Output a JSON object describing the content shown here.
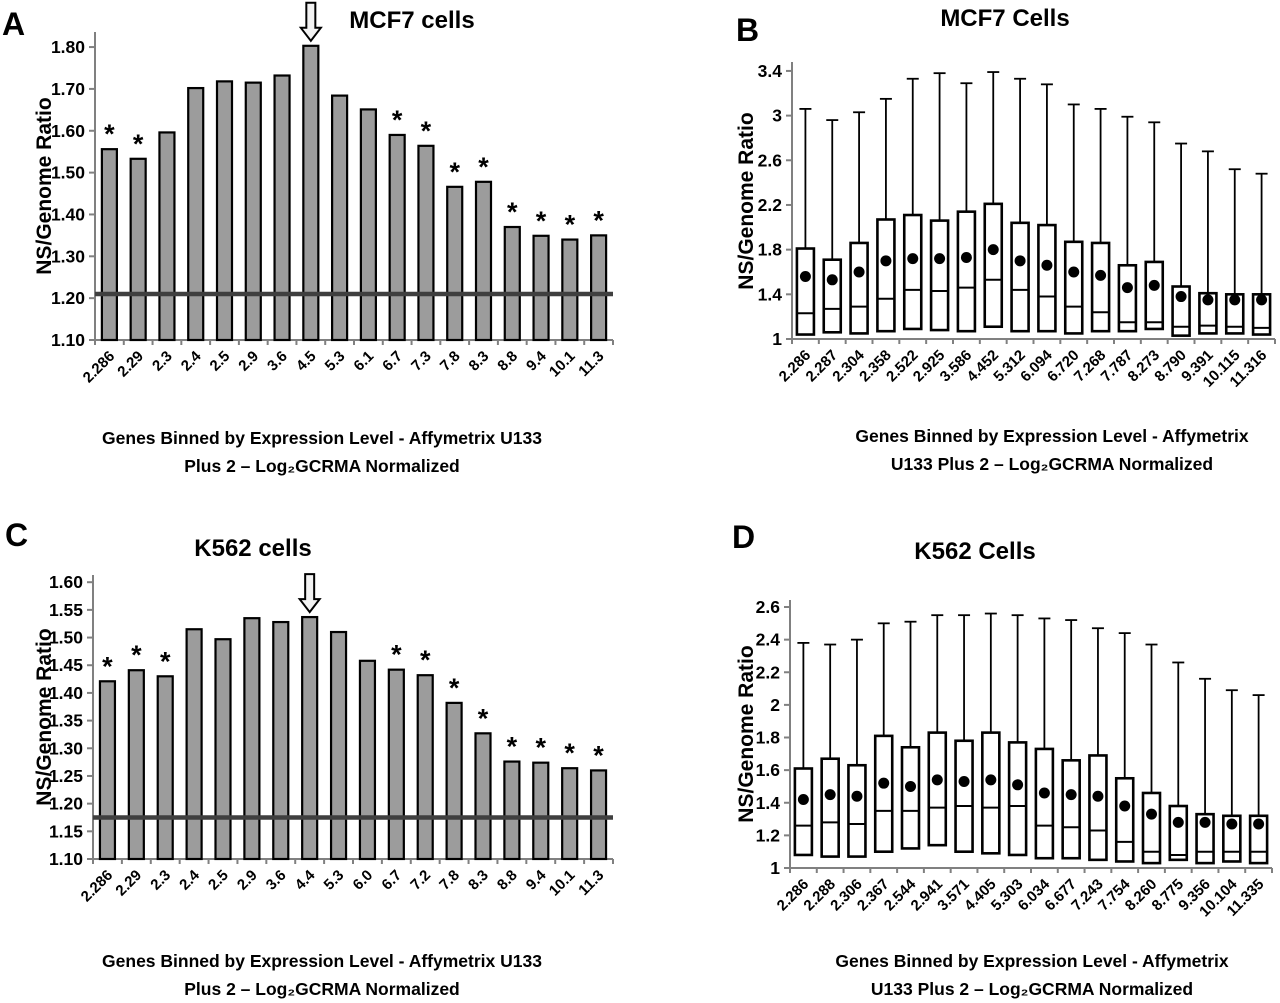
{
  "figure": {
    "significance_marker": "*",
    "colors": {
      "background": "#ffffff",
      "bar_fill": "#9c9c9c",
      "bar_stroke": "#000000",
      "reference_line": "#3f3f3f",
      "axis": "#808080",
      "box_fill": "#ffffff",
      "box_stroke": "#000000",
      "mean_dot": "#000000"
    }
  },
  "chart_data": [
    {
      "panel_label": "A",
      "type": "bar",
      "title": "MCF7 cells",
      "ylabel": "NS/Genome Ratio",
      "xlabel_line1": "Genes Binned by Expression Level - Affymetrix U133",
      "xlabel_line2": "Plus 2 – Log₂GCRMA Normalized",
      "categories": [
        "2.286",
        "2.29",
        "2.3",
        "2.4",
        "2.5",
        "2.9",
        "3.6",
        "4.5",
        "5.3",
        "6.1",
        "6.7",
        "7.3",
        "7.8",
        "8.3",
        "8.8",
        "9.4",
        "10.1",
        "11.3"
      ],
      "values": [
        1.556,
        1.533,
        1.596,
        1.702,
        1.718,
        1.715,
        1.732,
        1.803,
        1.684,
        1.651,
        1.59,
        1.564,
        1.466,
        1.478,
        1.37,
        1.349,
        1.34,
        1.35
      ],
      "significant_indices": [
        0,
        1,
        10,
        11,
        12,
        13,
        14,
        15,
        16,
        17
      ],
      "arrow_index": 7,
      "reference_line": 1.21,
      "ylim": [
        1.1,
        1.836
      ],
      "ytick_values": [
        1.1,
        1.2,
        1.3,
        1.4,
        1.5,
        1.6,
        1.7,
        1.8
      ],
      "ytick_labels": [
        "1.10",
        "1.20",
        "1.30",
        "1.40",
        "1.50",
        "1.60",
        "1.70",
        "1.80"
      ],
      "grid": false,
      "legend": "none"
    },
    {
      "panel_label": "B",
      "type": "box",
      "title": "MCF7 Cells",
      "ylabel": "NS/Genome Ratio",
      "xlabel_line1": "Genes Binned by Expression Level - Affymetrix",
      "xlabel_line2": "U133 Plus 2 – Log₂GCRMA Normalized",
      "categories": [
        "2.286",
        "2.287",
        "2.304",
        "2.358",
        "2.522",
        "2.925",
        "3.586",
        "4.452",
        "5.312",
        "6.094",
        "6.720",
        "7.268",
        "7.787",
        "8.273",
        "8.790",
        "9.391",
        "10.115",
        "11.316"
      ],
      "boxes": {
        "q1": [
          1.04,
          1.06,
          1.05,
          1.07,
          1.09,
          1.08,
          1.07,
          1.11,
          1.07,
          1.07,
          1.05,
          1.07,
          1.07,
          1.09,
          1.03,
          1.05,
          1.05,
          1.04
        ],
        "median": [
          1.23,
          1.27,
          1.29,
          1.36,
          1.44,
          1.43,
          1.46,
          1.53,
          1.44,
          1.38,
          1.29,
          1.24,
          1.15,
          1.15,
          1.11,
          1.12,
          1.11,
          1.1
        ],
        "q3": [
          1.81,
          1.71,
          1.86,
          2.07,
          2.11,
          2.06,
          2.14,
          2.21,
          2.04,
          2.02,
          1.87,
          1.86,
          1.66,
          1.69,
          1.47,
          1.41,
          1.4,
          1.4
        ],
        "whisker_high": [
          3.06,
          2.96,
          3.03,
          3.15,
          3.33,
          3.38,
          3.29,
          3.39,
          3.33,
          3.28,
          3.1,
          3.06,
          2.99,
          2.94,
          2.75,
          2.68,
          2.52,
          2.48
        ],
        "mean": [
          1.56,
          1.53,
          1.6,
          1.7,
          1.72,
          1.72,
          1.73,
          1.8,
          1.7,
          1.66,
          1.6,
          1.57,
          1.46,
          1.48,
          1.38,
          1.35,
          1.35,
          1.35
        ]
      },
      "ylim": [
        1.0,
        3.48
      ],
      "ytick_values": [
        1,
        1.4,
        1.8,
        2.2,
        2.6,
        3,
        3.4
      ],
      "ytick_labels": [
        "1",
        "1.4",
        "1.8",
        "2.2",
        "2.6",
        "3",
        "3.4"
      ],
      "grid": false,
      "legend": "none"
    },
    {
      "panel_label": "C",
      "type": "bar",
      "title": "K562 cells",
      "ylabel": "NS/Genome Ratio",
      "xlabel_line1": "Genes Binned by Expression Level - Affymetrix U133",
      "xlabel_line2": "Plus 2 – Log₂GCRMA Normalized",
      "categories": [
        "2.286",
        "2.29",
        "2.3",
        "2.4",
        "2.5",
        "2.9",
        "3.6",
        "4.4",
        "5.3",
        "6.0",
        "6.7",
        "7.2",
        "7.8",
        "8.3",
        "8.8",
        "9.4",
        "10.1",
        "11.3"
      ],
      "values": [
        1.421,
        1.441,
        1.43,
        1.515,
        1.497,
        1.535,
        1.528,
        1.537,
        1.51,
        1.458,
        1.442,
        1.432,
        1.382,
        1.327,
        1.276,
        1.274,
        1.264,
        1.26
      ],
      "significant_indices": [
        0,
        1,
        2,
        10,
        11,
        12,
        13,
        14,
        15,
        16,
        17
      ],
      "arrow_index": 7,
      "reference_line": 1.175,
      "ylim": [
        1.1,
        1.613
      ],
      "ytick_values": [
        1.1,
        1.15,
        1.2,
        1.25,
        1.3,
        1.35,
        1.4,
        1.45,
        1.5,
        1.55,
        1.6
      ],
      "ytick_labels": [
        "1.10",
        "1.15",
        "1.20",
        "1.25",
        "1.30",
        "1.35",
        "1.40",
        "1.45",
        "1.50",
        "1.55",
        "1.60"
      ],
      "grid": false,
      "legend": "none"
    },
    {
      "panel_label": "D",
      "type": "box",
      "title": "K562 Cells",
      "ylabel": "NS/Genome Ratio",
      "xlabel_line1": "Genes Binned by Expression Level - Affymetrix",
      "xlabel_line2": "U133 Plus 2 – Log₂GCRMA Normalized",
      "categories": [
        "2.286",
        "2.288",
        "2.306",
        "2.367",
        "2.544",
        "2.941",
        "3.571",
        "4.405",
        "5.303",
        "6.034",
        "6.677",
        "7.243",
        "7.754",
        "8.260",
        "8.775",
        "9.356",
        "10.104",
        "11.335"
      ],
      "boxes": {
        "q1": [
          1.08,
          1.07,
          1.07,
          1.1,
          1.12,
          1.14,
          1.1,
          1.09,
          1.08,
          1.06,
          1.06,
          1.05,
          1.04,
          1.03,
          1.05,
          1.03,
          1.04,
          1.03
        ],
        "median": [
          1.26,
          1.28,
          1.27,
          1.35,
          1.35,
          1.37,
          1.38,
          1.37,
          1.38,
          1.26,
          1.25,
          1.23,
          1.16,
          1.1,
          1.08,
          1.1,
          1.1,
          1.1
        ],
        "q3": [
          1.61,
          1.67,
          1.63,
          1.81,
          1.74,
          1.83,
          1.78,
          1.83,
          1.77,
          1.73,
          1.66,
          1.69,
          1.55,
          1.46,
          1.38,
          1.33,
          1.32,
          1.32
        ],
        "whisker_high": [
          2.38,
          2.37,
          2.4,
          2.5,
          2.51,
          2.55,
          2.55,
          2.56,
          2.55,
          2.53,
          2.52,
          2.47,
          2.44,
          2.37,
          2.26,
          2.16,
          2.09,
          2.06
        ],
        "mean": [
          1.42,
          1.45,
          1.44,
          1.52,
          1.5,
          1.54,
          1.53,
          1.54,
          1.51,
          1.46,
          1.45,
          1.44,
          1.38,
          1.33,
          1.28,
          1.28,
          1.27,
          1.27
        ]
      },
      "ylim": [
        1.0,
        2.643
      ],
      "ytick_values": [
        1,
        1.2,
        1.4,
        1.6,
        1.8,
        2,
        2.2,
        2.4,
        2.6
      ],
      "ytick_labels": [
        "1",
        "1.2",
        "1.4",
        "1.6",
        "1.8",
        "2",
        "2.2",
        "2.4",
        "2.6"
      ],
      "grid": false,
      "legend": "none"
    }
  ]
}
